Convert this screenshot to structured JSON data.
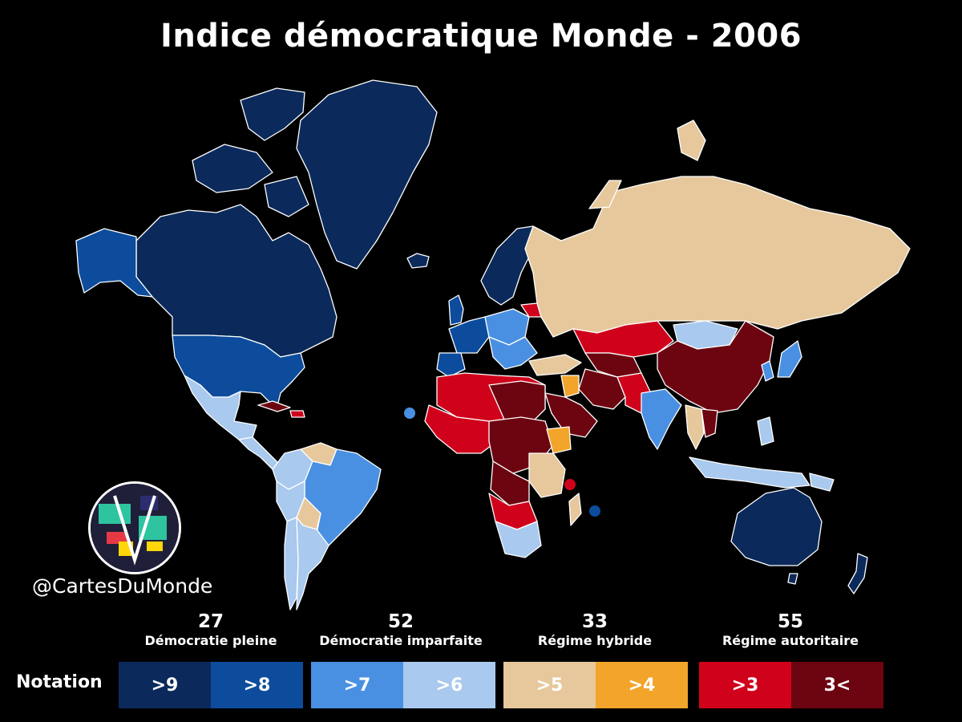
{
  "title": "Indice démocratique Monde - 2006",
  "handle": "@CartesDuMonde",
  "legend": {
    "notation_label": "Notation",
    "categories": [
      {
        "count": "27",
        "label": "Démocratie pleine"
      },
      {
        "count": "52",
        "label": "Démocratie imparfaite"
      },
      {
        "count": "33",
        "label": "Régime hybride"
      },
      {
        "count": "55",
        "label": "Régime autoritaire"
      }
    ],
    "scale": [
      {
        "label": ">9",
        "color": "#0b2a5b"
      },
      {
        "label": ">8",
        "color": "#0d4c9c"
      },
      {
        "label": ">7",
        "color": "#4a90e2"
      },
      {
        "label": ">6",
        "color": "#a9c9ee"
      },
      {
        "label": ">5",
        "color": "#e6c89c"
      },
      {
        "label": ">4",
        "color": "#f2a52a"
      },
      {
        "label": ">3",
        "color": "#d0021b"
      },
      {
        "label": "3<",
        "color": "#6d0510"
      }
    ]
  },
  "colors": {
    "background": "#000000",
    "border": "#ffffff"
  }
}
